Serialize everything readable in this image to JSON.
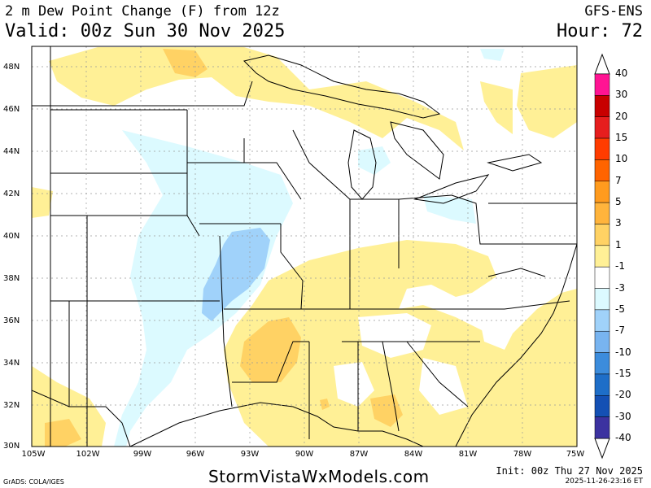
{
  "header": {
    "title": "2 m Dew Point Change (F) from 12z",
    "valid": "Valid: 00z Sun 30 Nov 2025",
    "model": "GFS-ENS",
    "hour": "Hour: 72"
  },
  "axes": {
    "lat_labels": [
      "48N",
      "46N",
      "44N",
      "42N",
      "40N",
      "38N",
      "36N",
      "34N",
      "32N",
      "30N"
    ],
    "lon_labels": [
      "105W",
      "102W",
      "99W",
      "96W",
      "93W",
      "90W",
      "87W",
      "84W",
      "81W",
      "78W",
      "75W"
    ]
  },
  "colorbar": {
    "levels": [
      "40",
      "30",
      "20",
      "15",
      "10",
      "7",
      "5",
      "3",
      "1",
      "-1",
      "-3",
      "-5",
      "-7",
      "-10",
      "-15",
      "-20",
      "-30",
      "-40"
    ],
    "colors": [
      "#ff1493",
      "#c80000",
      "#e61e1e",
      "#ff3c00",
      "#ff6400",
      "#ff9b1e",
      "#ffb43c",
      "#ffd264",
      "#fff096",
      "#ffffff",
      "#dcfaff",
      "#a0d2fa",
      "#78b4f0",
      "#3c8cdc",
      "#1e6ec8",
      "#1450b4",
      "#3c32a0",
      "#8c0ad2"
    ]
  },
  "footer": {
    "credit": "GrADS: COLA/IGES",
    "site": "StormVistaWxModels.com",
    "init": "Init: 00z Thu 27 Nov 2025",
    "stamp": "2025-11-26-23:16 ET"
  }
}
